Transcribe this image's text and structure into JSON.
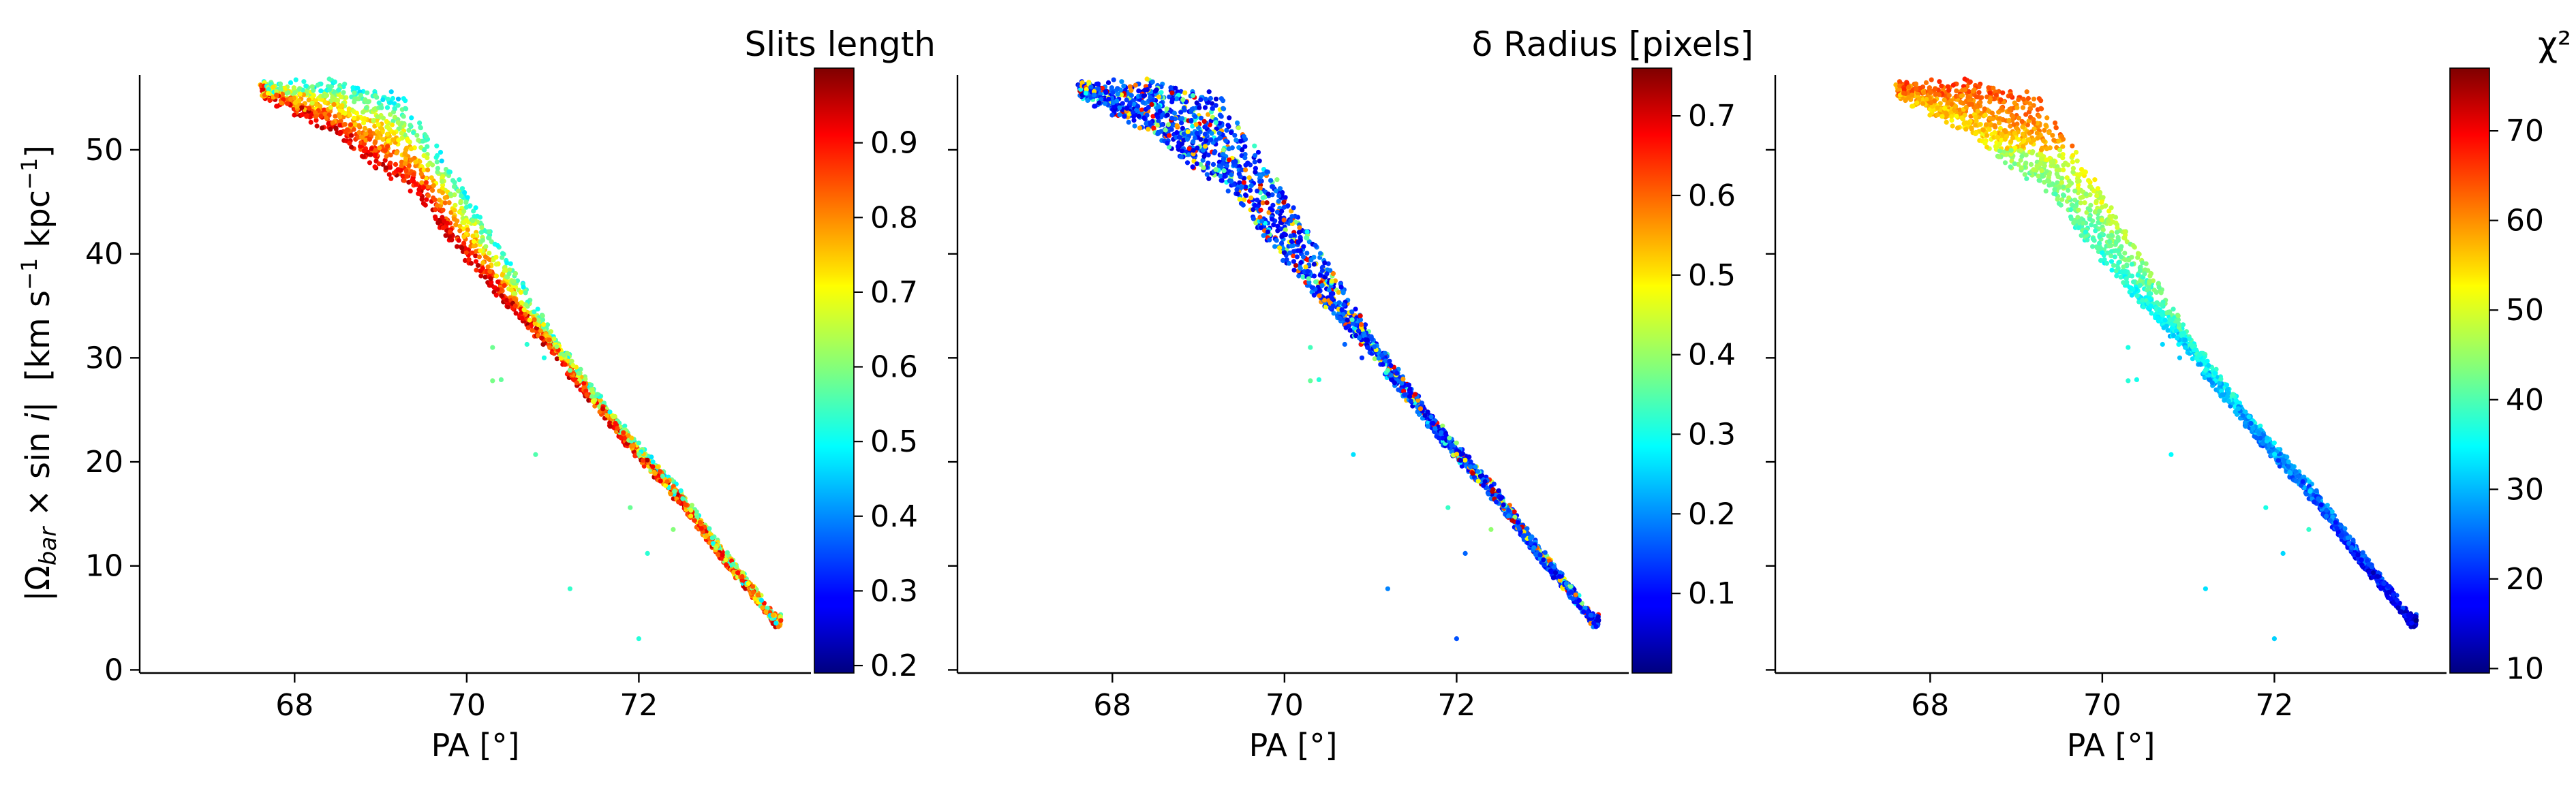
{
  "chart_data": [
    {
      "type": "scatter",
      "title": "",
      "xlabel": "PA [°]",
      "ylabel": "|Ω_bar × sin i|  [km s⁻¹ kpc⁻¹]",
      "xlim": [
        66.2,
        74.0
      ],
      "ylim": [
        -0.3,
        57.2
      ],
      "xticks": [
        "68",
        "70",
        "72"
      ],
      "yticks": [
        "0",
        "10",
        "20",
        "30",
        "40",
        "50"
      ],
      "grid": false,
      "colormap": "jet",
      "colorbar": {
        "label": "Slits length",
        "range": [
          0.19,
          1.0
        ],
        "ticks": [
          "0.2",
          "0.3",
          "0.4",
          "0.5",
          "0.6",
          "0.7",
          "0.8",
          "0.9"
        ]
      },
      "color_pattern": "slit_length"
    },
    {
      "type": "scatter",
      "title": "",
      "xlabel": "PA [°]",
      "ylabel": "",
      "xlim": [
        66.2,
        74.0
      ],
      "ylim": [
        -0.3,
        57.2
      ],
      "xticks": [
        "68",
        "70",
        "72"
      ],
      "yticks": [],
      "grid": false,
      "colormap": "jet",
      "colorbar": {
        "label": "δ Radius [pixels]",
        "range": [
          0.0,
          0.76
        ],
        "ticks": [
          "0.1",
          "0.2",
          "0.3",
          "0.4",
          "0.5",
          "0.6",
          "0.7"
        ]
      },
      "color_pattern": "delta_radius"
    },
    {
      "type": "scatter",
      "title": "",
      "xlabel": "PA [°]",
      "ylabel": "",
      "xlim": [
        66.2,
        74.0
      ],
      "ylim": [
        -0.3,
        57.2
      ],
      "xticks": [
        "68",
        "70",
        "72"
      ],
      "yticks": [],
      "grid": false,
      "colormap": "jet",
      "colorbar": {
        "label": "χ²",
        "range": [
          9.5,
          77.0
        ],
        "ticks": [
          "10",
          "20",
          "30",
          "40",
          "50",
          "60",
          "70"
        ]
      },
      "color_pattern": "chi2"
    }
  ],
  "scatter_model": {
    "n_points": 2200,
    "x_range": [
      67.6,
      73.65
    ],
    "ridge": [
      [
        67.6,
        56
      ],
      [
        68.5,
        52
      ],
      [
        69.5,
        45.5
      ],
      [
        70.0,
        40
      ],
      [
        70.5,
        35.5
      ],
      [
        71.0,
        31
      ],
      [
        71.5,
        26
      ],
      [
        72.0,
        21
      ],
      [
        72.5,
        16.5
      ],
      [
        73.0,
        11
      ],
      [
        73.6,
        5
      ]
    ],
    "upper_width": [
      [
        67.6,
        0.5
      ],
      [
        68.5,
        5
      ],
      [
        69.2,
        8
      ],
      [
        70.0,
        6
      ],
      [
        70.6,
        3.5
      ],
      [
        71.0,
        1.5
      ],
      [
        71.6,
        0.8
      ],
      [
        73.6,
        0.3
      ]
    ],
    "outliers": [
      [
        70.3,
        27.8
      ],
      [
        70.4,
        27.9
      ],
      [
        70.8,
        20.7
      ],
      [
        71.2,
        7.8
      ],
      [
        72.0,
        3.0
      ],
      [
        72.1,
        11.2
      ],
      [
        70.9,
        30.0
      ],
      [
        71.2,
        28.8
      ],
      [
        70.3,
        31.0
      ],
      [
        70.7,
        31.3
      ],
      [
        71.9,
        15.6
      ],
      [
        72.4,
        13.5
      ]
    ]
  }
}
